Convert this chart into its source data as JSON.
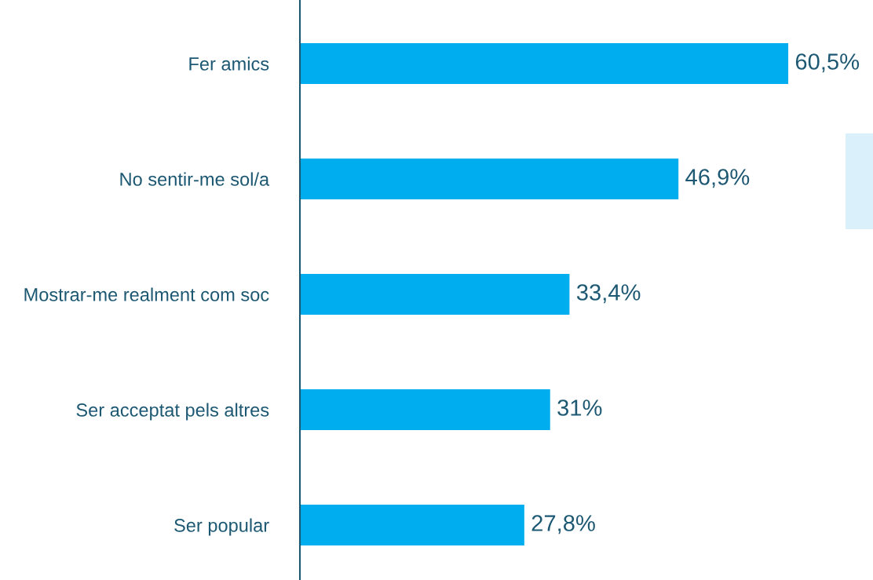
{
  "chart_data": {
    "type": "bar",
    "orientation": "horizontal",
    "categories": [
      "Fer amics",
      "No sentir-me sol/a",
      "Mostrar-me realment com soc",
      "Ser acceptat pels altres",
      "Ser popular"
    ],
    "values": [
      60.5,
      46.9,
      33.4,
      31,
      27.8
    ],
    "value_labels": [
      "60,5%",
      "46,9%",
      "33,4%",
      "31%",
      "27,8%"
    ],
    "color": "#00adee",
    "xlim": [
      0,
      71
    ],
    "tick_labels": "y",
    "grid": false
  }
}
